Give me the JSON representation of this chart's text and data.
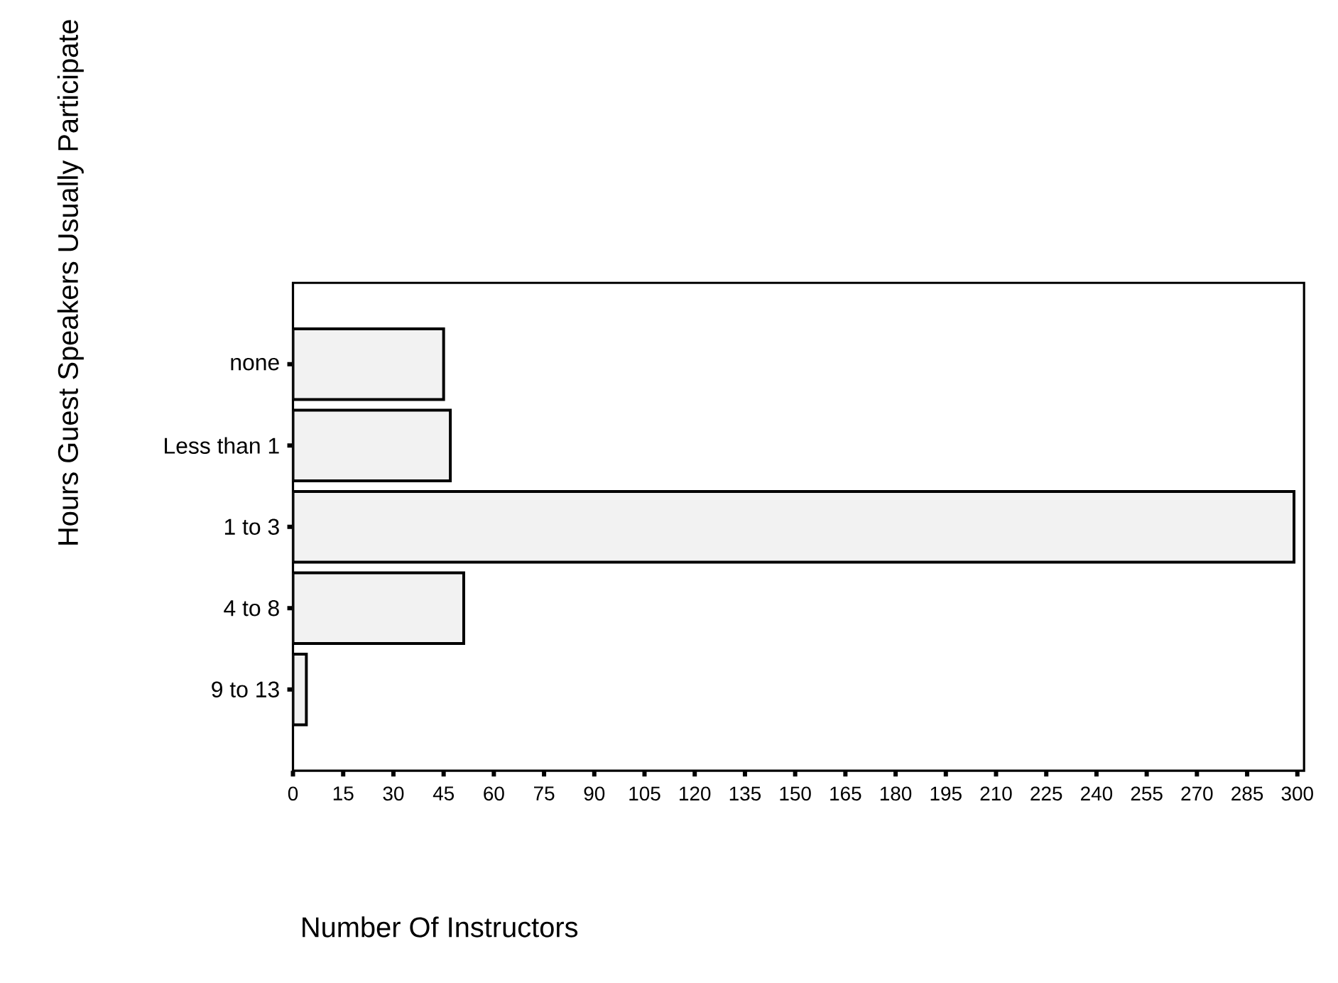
{
  "chart_data": {
    "type": "bar",
    "orientation": "horizontal",
    "xlabel": "Number Of Instructors",
    "ylabel": "Hours Guest Speakers Usually Participate",
    "categories": [
      "none",
      "Less than 1",
      "1 to 3",
      "4 to 8",
      "9 to 13"
    ],
    "values": [
      45,
      47,
      299,
      51,
      4
    ],
    "color": "#f2f2f2",
    "xlim": [
      0,
      302
    ],
    "xticks": [
      0,
      15,
      30,
      45,
      60,
      75,
      90,
      105,
      120,
      135,
      150,
      165,
      180,
      195,
      210,
      225,
      240,
      255,
      270,
      285,
      300
    ],
    "grid": false
  }
}
